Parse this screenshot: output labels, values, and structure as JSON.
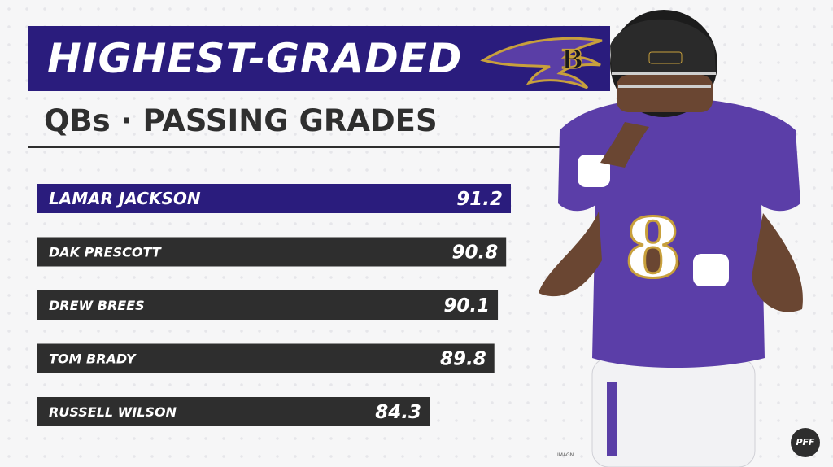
{
  "header": {
    "title": "HIGHEST-GRADED",
    "subtitle": "QBs · PASSING GRADES"
  },
  "colors": {
    "title_band": "#2a1c7d",
    "highlight_bar": "#2a1c7d",
    "bar": "#2e2e2e",
    "text": "#ffffff",
    "ravens_purple": "#5a3ea6",
    "ravens_gold": "#c8a03c"
  },
  "chart_data": {
    "type": "bar",
    "orientation": "horizontal",
    "categories": [
      "LAMAR JACKSON",
      "DAK PRESCOTT",
      "DREW BREES",
      "TOM BRADY",
      "RUSSELL WILSON"
    ],
    "values": [
      91.2,
      90.8,
      90.1,
      89.8,
      84.3
    ],
    "value_labels": [
      "91.2",
      "90.8",
      "90.1",
      "89.8",
      "84.3"
    ],
    "highlight": "LAMAR JACKSON",
    "title": "HIGHEST-GRADED",
    "subtitle": "QBs · PASSING GRADES",
    "xlabel": "",
    "ylabel": "",
    "grid": false,
    "legend": "none"
  },
  "icons": {
    "team_logo": "ravens-logo-icon",
    "brand_logo": "pff-logo-icon"
  },
  "credits": {
    "photo": "IMAGN",
    "brand": "PFF"
  }
}
